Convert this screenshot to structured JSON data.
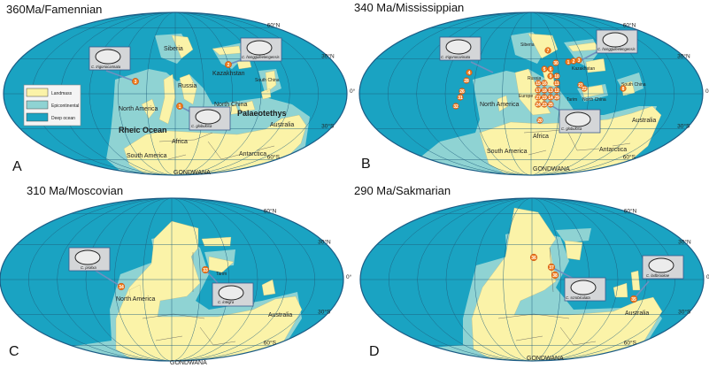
{
  "colors": {
    "deep_ocean": "#1aa3c2",
    "epicontinental": "#8fd3d3",
    "landmass": "#fbf3a8",
    "marker": "#ef7d1a",
    "outline": "#1b5c85"
  },
  "latitude_labels": [
    "60°N",
    "30°N",
    "0°",
    "30°S",
    "60°S"
  ],
  "legend": {
    "items": [
      "Landmass",
      "Epicontinental",
      "Deep ocean"
    ]
  },
  "panels": [
    {
      "letter": "A",
      "title": "360Ma/Famennian",
      "labels": [
        "Siberia",
        "Kazakhstan",
        "South China",
        "Russia",
        "North America",
        "North China",
        "Australia",
        "Africa",
        "South America",
        "Antarctica",
        "GONDWANA"
      ],
      "bold_labels": [
        "Rheic Ocean",
        "Palaeotethys"
      ],
      "species": [
        "C. trigonocarinata",
        "C. hongguleelengensis",
        "C. globulosa"
      ],
      "markers": [
        "3",
        "2",
        "1"
      ]
    },
    {
      "letter": "B",
      "title": "340 Ma/Mississippian",
      "labels": [
        "Siberia",
        "Kazakhstan",
        "South China",
        "Russia",
        "Europe",
        "North America",
        "Tarim",
        "North China",
        "Australia",
        "Africa",
        "South America",
        "Antarctica",
        "GONDWANA"
      ],
      "species": [
        "C. trigonocarinata",
        "C. hongguleelengensis",
        "C. globulosa"
      ],
      "markers": [
        "4",
        "28",
        "26",
        "31",
        "32",
        "7",
        "30",
        "1",
        "2",
        "3",
        "8",
        "21",
        "22",
        "20",
        "5",
        "6",
        "9",
        "10",
        "11",
        "12",
        "13",
        "14",
        "15",
        "16",
        "17",
        "18",
        "19",
        "23",
        "24",
        "25",
        "27",
        "29"
      ]
    },
    {
      "letter": "C",
      "title": "310 Ma/Moscovian",
      "labels": [
        "North America",
        "Tarim",
        "Australia",
        "GONDWANA"
      ],
      "species": [
        "C. prolixa",
        "C. integra"
      ],
      "markers": [
        "34",
        "33"
      ]
    },
    {
      "letter": "D",
      "title": "290 Ma/Sakmarian",
      "labels": [
        "Australia",
        "GONDWANA"
      ],
      "species": [
        "C. scrobiculata",
        "C. ladbrookae"
      ],
      "markers": [
        "36",
        "37",
        "38",
        "35"
      ]
    }
  ]
}
